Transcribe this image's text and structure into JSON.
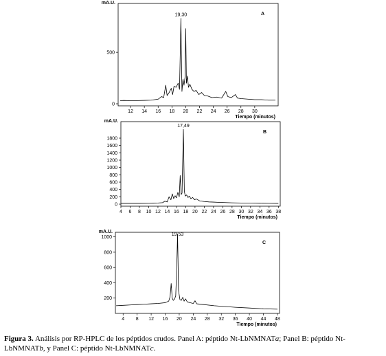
{
  "chart_data": [
    {
      "type": "line",
      "panel_label": "A",
      "peak_label": "19,30",
      "y_label": "mA.U.",
      "x_label": "Tiempo (minutos)",
      "color": "#000000",
      "xlim": [
        10.2,
        33.4
      ],
      "ylim": [
        -20,
        975
      ],
      "xticks": [
        12,
        14,
        16,
        18,
        20,
        22,
        24,
        26,
        28,
        30
      ],
      "yticks": [
        0,
        500
      ],
      "x": [
        10.5,
        11,
        12,
        13,
        14,
        15,
        16,
        16.5,
        16.8,
        17.1,
        17.3,
        17.6,
        17.9,
        18.1,
        18.3,
        18.6,
        18.9,
        19.1,
        19.3,
        19.45,
        19.6,
        19.75,
        19.9,
        20.0,
        20.1,
        20.25,
        20.4,
        20.6,
        20.9,
        21.2,
        21.5,
        21.9,
        22.3,
        22.7,
        23.2,
        23.8,
        24.5,
        25.2,
        25.8,
        26.1,
        26.6,
        27.2,
        27.5,
        28,
        29,
        30,
        31,
        32,
        33
      ],
      "values": [
        30,
        32,
        30,
        31,
        33,
        35,
        45,
        70,
        60,
        180,
        80,
        110,
        150,
        90,
        170,
        160,
        200,
        140,
        830,
        120,
        240,
        180,
        260,
        730,
        200,
        270,
        160,
        190,
        140,
        120,
        130,
        90,
        110,
        80,
        75,
        60,
        65,
        55,
        120,
        70,
        60,
        90,
        55,
        50,
        45,
        40,
        40,
        35,
        35
      ]
    },
    {
      "type": "line",
      "panel_label": "B",
      "peak_label": "17,49",
      "y_label": "mA.U.",
      "x_label": "Tiempo (minutos)",
      "color": "#000000",
      "xlim": [
        4,
        38.4
      ],
      "ylim": [
        -56,
        2250
      ],
      "xticks": [
        4,
        6,
        8,
        10,
        12,
        14,
        16,
        18,
        20,
        22,
        24,
        26,
        28,
        30,
        32,
        34,
        36,
        38
      ],
      "yticks": [
        0,
        200,
        400,
        600,
        800,
        1000,
        1200,
        1400,
        1600,
        1800
      ],
      "x": [
        4,
        6,
        8,
        10,
        11,
        12,
        13,
        13.5,
        14,
        14.4,
        14.8,
        15.1,
        15.4,
        15.7,
        16,
        16.3,
        16.6,
        16.8,
        17.0,
        17.2,
        17.49,
        17.7,
        17.9,
        18.2,
        18.5,
        18.8,
        19.1,
        19.5,
        19.9,
        20.3,
        21,
        22,
        23,
        24,
        25,
        26,
        27,
        28,
        30,
        32,
        34,
        36,
        38
      ],
      "values": [
        20,
        20,
        20,
        22,
        25,
        30,
        40,
        80,
        60,
        200,
        120,
        280,
        150,
        230,
        170,
        320,
        200,
        780,
        260,
        300,
        2040,
        350,
        220,
        250,
        180,
        220,
        150,
        180,
        120,
        140,
        90,
        70,
        60,
        55,
        50,
        45,
        40,
        35,
        30,
        28,
        25,
        22,
        20
      ]
    },
    {
      "type": "line",
      "panel_label": "C",
      "peak_label": "19,53",
      "y_label": "mA.U.",
      "x_label": "Tiempo (minutos)",
      "color": "#000000",
      "xlim": [
        1.8,
        48.6
      ],
      "ylim": [
        0,
        1060
      ],
      "xticks": [
        4,
        8,
        12,
        16,
        20,
        24,
        28,
        32,
        36,
        40,
        44,
        48
      ],
      "yticks": [
        200,
        400,
        600,
        800,
        1000
      ],
      "x": [
        2,
        4,
        6,
        8,
        10,
        12,
        14,
        16,
        17,
        17.4,
        17.7,
        18.0,
        18.3,
        18.7,
        19.0,
        19.3,
        19.53,
        19.8,
        20.2,
        20.6,
        21,
        21.4,
        21.8,
        22.3,
        23,
        24,
        24.5,
        25,
        27,
        30,
        33,
        36,
        40,
        44,
        48
      ],
      "values": [
        100,
        105,
        110,
        115,
        120,
        125,
        130,
        140,
        160,
        220,
        390,
        200,
        170,
        190,
        230,
        620,
        1040,
        300,
        180,
        170,
        210,
        160,
        190,
        150,
        140,
        130,
        165,
        125,
        115,
        100,
        90,
        80,
        70,
        60,
        55
      ]
    }
  ],
  "caption": {
    "label": "Figura 3.",
    "parts": [
      "Análisis por RP-HPLC de los péptidos crudos. Panel A: péptido Nt-LbNMNAT",
      "a",
      "; Panel B: péptido Nt-LbNMNAT",
      "b",
      ", y Panel C: péptido Nt-LbNMNAT",
      "c",
      "."
    ]
  }
}
